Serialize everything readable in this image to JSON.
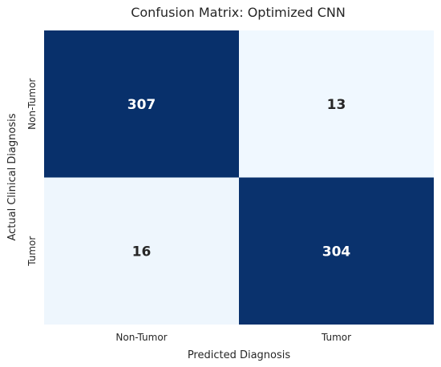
{
  "chart_data": {
    "type": "heatmap",
    "title": "Confusion Matrix: Optimized CNN",
    "xlabel": "Predicted Diagnosis",
    "ylabel": "Actual Clinical Diagnosis",
    "x_categories": [
      "Non-Tumor",
      "Tumor"
    ],
    "y_categories": [
      "Non-Tumor",
      "Tumor"
    ],
    "values": [
      [
        307,
        13
      ],
      [
        16,
        304
      ]
    ],
    "colorscale": "Blues",
    "colors": {
      "high": "#08306b",
      "low": "#f0f8ff",
      "text_on_dark": "#ffffff",
      "text_on_light": "#262626"
    },
    "colorbar": false,
    "grid": false
  }
}
